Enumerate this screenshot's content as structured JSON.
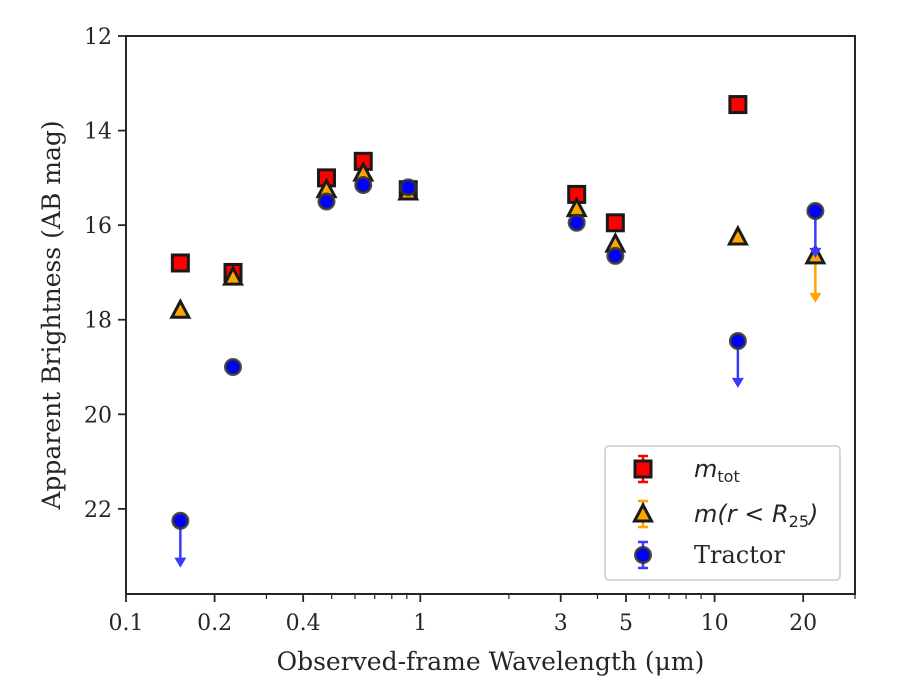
{
  "chart_data": {
    "type": "scatter",
    "title": "",
    "xlabel": "Observed-frame Wavelength (μm)",
    "ylabel": "Apparent Brightness (AB mag)",
    "xscale": "log",
    "xlim": [
      0.1,
      30
    ],
    "ylim": [
      23.8,
      12
    ],
    "y_inverted": true,
    "grid": false,
    "legend_position": "lower-right",
    "x_ticks": [
      {
        "value": 0.1,
        "label": "0.1"
      },
      {
        "value": 0.2,
        "label": "0.2"
      },
      {
        "value": 0.4,
        "label": "0.4"
      },
      {
        "value": 1,
        "label": "1"
      },
      {
        "value": 3,
        "label": "3"
      },
      {
        "value": 5,
        "label": "5"
      },
      {
        "value": 10,
        "label": "10"
      },
      {
        "value": 20,
        "label": "20"
      }
    ],
    "x_minor_ticks": [
      0.3,
      0.5,
      0.6,
      0.7,
      0.8,
      0.9,
      2,
      4,
      6,
      7,
      8,
      9,
      30
    ],
    "y_ticks": [
      {
        "value": 12,
        "label": "12"
      },
      {
        "value": 14,
        "label": "14"
      },
      {
        "value": 16,
        "label": "16"
      },
      {
        "value": 18,
        "label": "18"
      },
      {
        "value": 20,
        "label": "20"
      },
      {
        "value": 22,
        "label": "22"
      }
    ],
    "series": [
      {
        "name": "m_tot",
        "legend_label_prefix": "m",
        "legend_label_sub": "tot",
        "marker": "square",
        "color": "#ff0000",
        "edge_color": "#1a1a1a",
        "points": [
          {
            "x": 0.153,
            "y": 16.8
          },
          {
            "x": 0.231,
            "y": 17.0
          },
          {
            "x": 0.48,
            "y": 15.0
          },
          {
            "x": 0.64,
            "y": 14.65
          },
          {
            "x": 0.91,
            "y": 15.25
          },
          {
            "x": 3.4,
            "y": 15.35
          },
          {
            "x": 4.6,
            "y": 15.95
          },
          {
            "x": 12.0,
            "y": 13.45
          }
        ]
      },
      {
        "name": "m(r<R_25)",
        "legend_label_prefix": "m(r < R",
        "legend_label_sub": "25",
        "legend_label_suffix": ")",
        "marker": "triangle",
        "color": "#ffa500",
        "edge_color": "#1a1a1a",
        "points": [
          {
            "x": 0.153,
            "y": 17.8
          },
          {
            "x": 0.231,
            "y": 17.1
          },
          {
            "x": 0.48,
            "y": 15.25
          },
          {
            "x": 0.64,
            "y": 14.9
          },
          {
            "x": 0.91,
            "y": 15.3
          },
          {
            "x": 3.4,
            "y": 15.65
          },
          {
            "x": 4.6,
            "y": 16.4
          },
          {
            "x": 12.0,
            "y": 16.25
          },
          {
            "x": 22.0,
            "y": 16.65,
            "upper_limit": true,
            "arrow_to": 17.6
          }
        ]
      },
      {
        "name": "Tractor",
        "marker": "circle",
        "color": "#0000ff",
        "edge_color": "#333333",
        "points": [
          {
            "x": 0.153,
            "y": 22.25,
            "upper_limit": true,
            "arrow_to": 23.2
          },
          {
            "x": 0.231,
            "y": 19.0
          },
          {
            "x": 0.48,
            "y": 15.5
          },
          {
            "x": 0.64,
            "y": 15.15
          },
          {
            "x": 0.91,
            "y": 15.2
          },
          {
            "x": 3.4,
            "y": 15.95
          },
          {
            "x": 4.6,
            "y": 16.65
          },
          {
            "x": 12.0,
            "y": 18.45,
            "upper_limit": true,
            "arrow_to": 19.4
          },
          {
            "x": 22.0,
            "y": 15.7,
            "upper_limit": true,
            "arrow_to": 16.65
          }
        ]
      }
    ],
    "legend": {
      "entries": [
        "m_tot",
        "m(r<R_25)",
        "Tractor"
      ]
    }
  }
}
